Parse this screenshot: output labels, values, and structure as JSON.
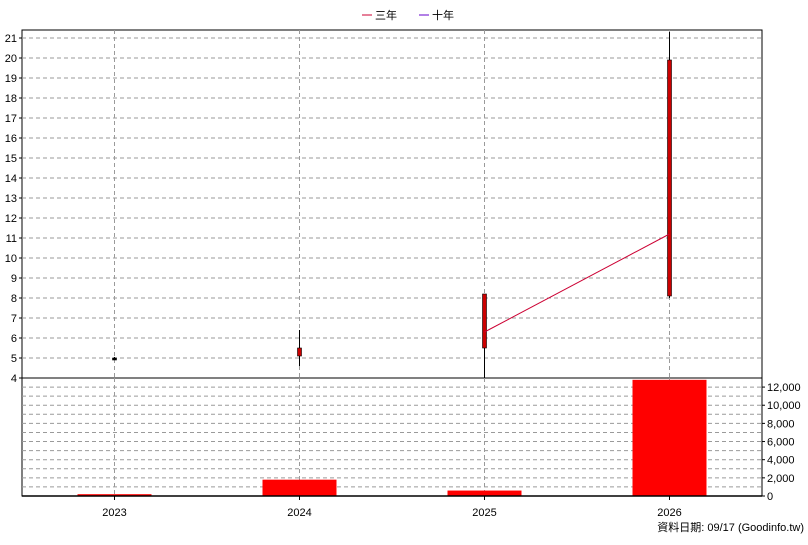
{
  "legend": [
    {
      "label": "三年",
      "color": "#cc0033"
    },
    {
      "label": "十年",
      "color": "#6600cc"
    }
  ],
  "footer": "資料日期: 09/17  (Goodinfo.tw)",
  "chart_data": [
    {
      "type": "candlestick",
      "categories": [
        "2023",
        "2024",
        "2025",
        "2026"
      ],
      "ylim": [
        4,
        21
      ],
      "y_ticks": [
        4,
        5,
        6,
        7,
        8,
        9,
        10,
        11,
        12,
        13,
        14,
        15,
        16,
        17,
        18,
        19,
        20,
        21
      ],
      "grid": true,
      "candles": [
        {
          "x": "2023",
          "open": 5.0,
          "close": 5.0,
          "high": 5.05,
          "low": 4.95,
          "color": "#000000"
        },
        {
          "x": "2024",
          "open": 5.5,
          "close": 5.1,
          "high": 6.4,
          "low": 4.6,
          "color": "#cc0000"
        },
        {
          "x": "2025",
          "open": 8.2,
          "close": 5.5,
          "high": 8.2,
          "low": 3.9,
          "color": "#cc0000"
        },
        {
          "x": "2026",
          "open": 19.9,
          "close": 8.1,
          "high": 21.3,
          "low": 8.0,
          "color": "#cc0000"
        }
      ],
      "series": [
        {
          "name": "三年",
          "color": "#cc0033",
          "x": [
            "2025",
            "2026"
          ],
          "values": [
            6.3,
            11.2
          ]
        }
      ]
    },
    {
      "type": "bar",
      "categories": [
        "2023",
        "2024",
        "2025",
        "2026"
      ],
      "values": [
        200,
        1800,
        600,
        12800
      ],
      "ylim": [
        0,
        13000
      ],
      "y_ticks": [
        0,
        2000,
        4000,
        6000,
        8000,
        10000,
        12000
      ],
      "y_tick_labels": [
        "0",
        "2,000",
        "4,000",
        "6,000",
        "8,000",
        "10,000",
        "12,000"
      ],
      "x_tick_labels": [
        "2023",
        "2024",
        "2025",
        "2026"
      ],
      "grid": true,
      "color": "#ff0000"
    }
  ]
}
